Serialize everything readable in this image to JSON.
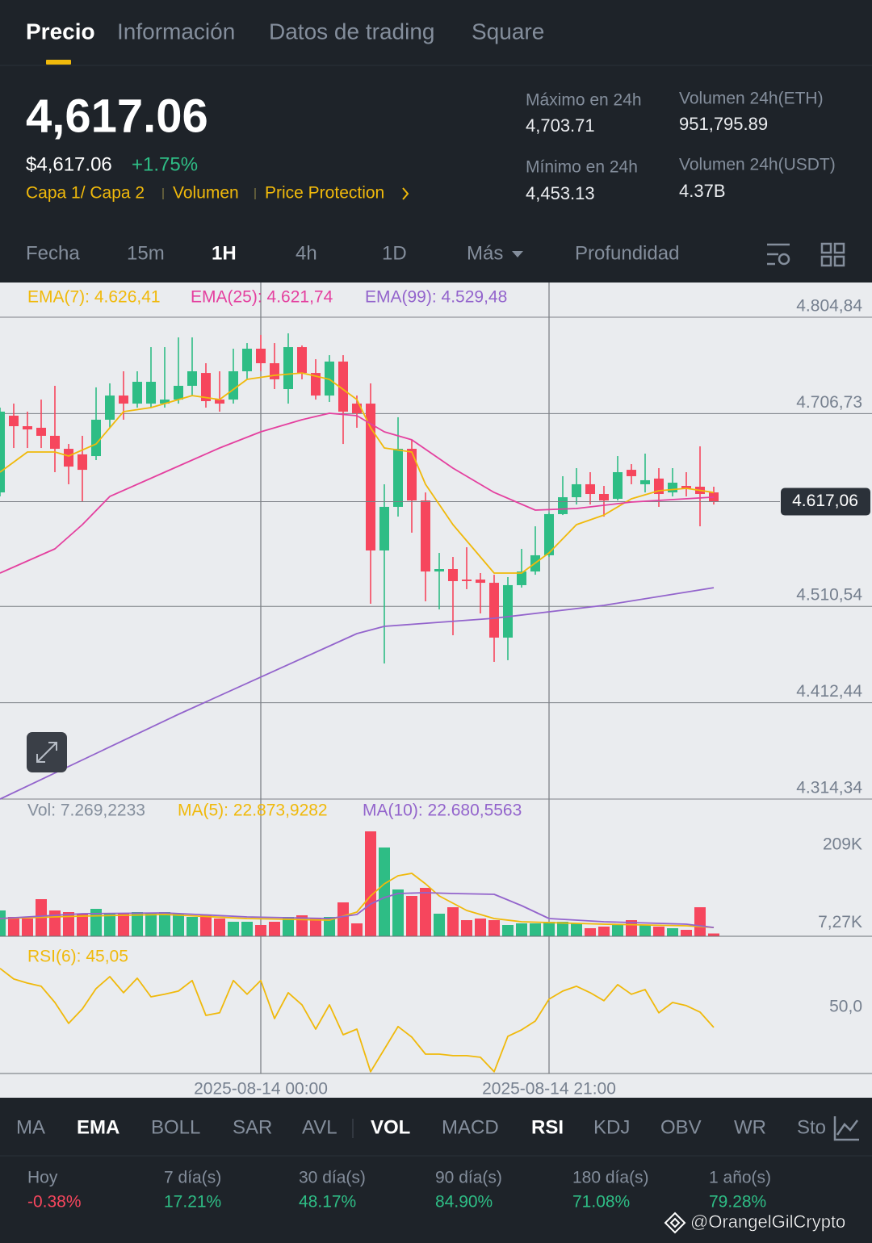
{
  "tabs": [
    "Precio",
    "Información",
    "Datos de trading",
    "Square"
  ],
  "price": "4,617.06",
  "price_usd": "$4,617.06",
  "change": "+1.75%",
  "links": [
    "Capa 1/ Capa 2",
    "Volumen",
    "Price Protection"
  ],
  "stats": [
    {
      "label": "Máximo en 24h",
      "value": "4,703.71"
    },
    {
      "label": "Volumen 24h(ETH)",
      "value": "951,795.89"
    },
    {
      "label": "Mínimo en 24h",
      "value": "4,453.13"
    },
    {
      "label": "Volumen 24h(USDT)",
      "value": "4.37B"
    }
  ],
  "intervals": [
    "Fecha",
    "15m",
    "1H",
    "4h",
    "1D",
    "Más",
    "Profundidad"
  ],
  "chart_data": [
    {
      "type": "candlestick",
      "up_color": "#2ebd85",
      "down_color": "#f6465d",
      "grid": true,
      "x": [
        0,
        1,
        2,
        3,
        4,
        5,
        6,
        7,
        8,
        9,
        10,
        11,
        12,
        13,
        14,
        15,
        16,
        17,
        18,
        19,
        20,
        21,
        22,
        23,
        24,
        25,
        26,
        27,
        28,
        29,
        30,
        31,
        32,
        33,
        34,
        35,
        36,
        37,
        38,
        39,
        40,
        41,
        42,
        43,
        44,
        45,
        46,
        47,
        48,
        49,
        50,
        51,
        52
      ],
      "open": [
        4626.5,
        4704.6,
        4693.9,
        4692.3,
        4684.1,
        4670.9,
        4665.2,
        4663.5,
        4700.5,
        4725.1,
        4716.9,
        4716.9,
        4716.9,
        4721.0,
        4735.0,
        4748.1,
        4721.0,
        4721.0,
        4749.8,
        4772.8,
        4758.0,
        4731.7,
        4774.4,
        4748.1,
        4725.1,
        4759.7,
        4716.9,
        4716.9,
        4567.4,
        4611.8,
        4670.9,
        4618.3,
        4546.0,
        4548.5,
        4537.8,
        4537.8,
        4534.5,
        4478.7,
        4532.1,
        4546.0,
        4562.5,
        4604.4,
        4621.6,
        4634.8,
        4624.9,
        4620.0,
        4649.5,
        4634.8,
        4640.6,
        4626.5,
        4633.1,
        4632.3,
        4626.5
      ],
      "high": [
        4712.8,
        4716.9,
        4708.7,
        4721.0,
        4735.0,
        4675.8,
        4684.1,
        4733.4,
        4737.5,
        4749.8,
        4749.8,
        4774.4,
        4774.4,
        4784.3,
        4784.3,
        4758.0,
        4749.8,
        4772.8,
        4778.5,
        4786.8,
        4778.5,
        4788.4,
        4776.1,
        4762.1,
        4766.2,
        4766.2,
        4725.1,
        4737.5,
        4634.8,
        4703.0,
        4680.0,
        4626.5,
        4564.9,
        4560.8,
        4570.7,
        4544.4,
        4542.7,
        4540.3,
        4569.0,
        4592.0,
        4606.0,
        4643.0,
        4651.2,
        4647.1,
        4633.1,
        4663.5,
        4655.3,
        4666.0,
        4651.2,
        4651.2,
        4647.1,
        4673.4,
        4632.3
      ],
      "low": [
        4622.4,
        4671.7,
        4671.7,
        4671.7,
        4647.1,
        4634.8,
        4616.7,
        4659.4,
        4692.3,
        4700.5,
        4712.8,
        4712.8,
        4712.8,
        4716.9,
        4725.1,
        4712.8,
        4708.7,
        4716.9,
        4741.6,
        4749.8,
        4731.7,
        4716.9,
        4741.6,
        4721.0,
        4718.6,
        4675.8,
        4692.3,
        4513.2,
        4452.4,
        4601.9,
        4585.5,
        4515.6,
        4507.4,
        4481.1,
        4528.0,
        4503.3,
        4454.0,
        4455.7,
        4529.6,
        4542.7,
        4560.8,
        4603.5,
        4614.2,
        4614.2,
        4601.9,
        4618.3,
        4634.8,
        4626.5,
        4611.8,
        4622.4,
        4622.4,
        4592.0,
        4614.2
      ],
      "close": [
        4708.7,
        4693.9,
        4690.6,
        4684.1,
        4670.9,
        4652.8,
        4649.5,
        4700.5,
        4725.1,
        4716.9,
        4739.1,
        4739.1,
        4721.0,
        4735.0,
        4749.8,
        4719.4,
        4716.9,
        4749.8,
        4772.8,
        4758.0,
        4741.6,
        4774.4,
        4748.1,
        4725.1,
        4759.7,
        4708.7,
        4707.1,
        4567.4,
        4611.8,
        4670.9,
        4618.3,
        4546.0,
        4548.5,
        4536.2,
        4536.2,
        4534.5,
        4478.7,
        4532.1,
        4546.0,
        4562.5,
        4604.4,
        4621.6,
        4634.8,
        4624.9,
        4618.3,
        4647.1,
        4643.0,
        4638.9,
        4624.9,
        4636.4,
        4630.7,
        4624.9,
        4617.06
      ],
      "series": [
        {
          "name": "EMA(7): 4.626,41",
          "color": "#f0b90b",
          "x": [
            0,
            2,
            4,
            5,
            7,
            9,
            11,
            14,
            16,
            18,
            20,
            22,
            24,
            26,
            27,
            28,
            30,
            31,
            33,
            35,
            36,
            38,
            40,
            42,
            44,
            46,
            48,
            50,
            52
          ],
          "values": [
            4647.1,
            4667.6,
            4667.6,
            4663.5,
            4675.8,
            4708.7,
            4712.8,
            4725.1,
            4721.0,
            4741.6,
            4745.7,
            4748.1,
            4741.6,
            4721.0,
            4692.3,
            4671.7,
            4667.6,
            4634.8,
            4593.7,
            4560.8,
            4544.4,
            4544.4,
            4564.9,
            4593.7,
            4603.5,
            4620.0,
            4628.2,
            4630.7,
            4626.41
          ]
        },
        {
          "name": "EMA(25): 4.621,74",
          "color": "#e4409f",
          "x": [
            0,
            4,
            6,
            8,
            12,
            16,
            19,
            22,
            24,
            26,
            28,
            30,
            33,
            36,
            39,
            42,
            46,
            52
          ],
          "values": [
            4544.4,
            4569.0,
            4593.7,
            4622.4,
            4647.1,
            4671.7,
            4688.2,
            4700.5,
            4707.1,
            4704.6,
            4688.2,
            4680.0,
            4651.2,
            4626.5,
            4608.5,
            4610.1,
            4616.7,
            4621.74
          ]
        },
        {
          "name": "EMA(99): 4.529,48",
          "color": "#9364cc",
          "x": [
            0,
            13,
            26,
            28,
            36,
            44,
            52
          ],
          "values": [
            4314.34,
            4400.6,
            4482.8,
            4490.2,
            4498.4,
            4511.5,
            4529.48
          ]
        }
      ],
      "xlim": [
        0,
        63.5
      ],
      "ylim": [
        4314.34,
        4840.17
      ],
      "yticks": [
        {
          "value": 4804.84,
          "label": "4.804,84"
        },
        {
          "value": 4706.73,
          "label": "4.706,73"
        },
        {
          "value": 4510.54,
          "label": "4.510,54"
        },
        {
          "value": 4412.44,
          "label": "4.412,44"
        },
        {
          "value": 4314.34,
          "label": "4.314,34"
        }
      ],
      "xticks": [
        {
          "value": 19,
          "label": "2025-08-14 00:00"
        },
        {
          "value": 40,
          "label": "2025-08-14 21:00"
        }
      ],
      "last_price": {
        "value": 4617.06,
        "label": "4.617,06"
      }
    },
    {
      "type": "bar",
      "name": "Vol: 7.269,2233",
      "grid": false,
      "values": [
        66880,
        50160,
        45980,
        96140,
        66880,
        62700,
        58520,
        71060,
        58520,
        58520,
        62700,
        58520,
        62700,
        58520,
        50160,
        54340,
        45980,
        37620,
        37620,
        29260,
        37620,
        50160,
        54340,
        45980,
        50160,
        87780,
        33440,
        271700,
        229900,
        121220,
        104500,
        125400,
        58520,
        75240,
        41800,
        45980,
        41800,
        29260,
        33440,
        33440,
        37620,
        37620,
        33440,
        20900,
        25080,
        29260,
        41800,
        29260,
        25080,
        20900,
        16720,
        75240,
        7269.2233
      ],
      "series": [
        {
          "name": "MA(5): 22.873,9282",
          "color": "#f0b90b",
          "x": [
            0,
            6,
            12,
            18,
            24,
            26,
            27,
            28,
            29,
            30,
            31,
            32,
            34,
            36,
            38,
            44,
            50,
            52
          ],
          "values": [
            45980,
            52250,
            56430,
            45980,
            41800,
            62700,
            104500,
            135850,
            156750,
            163020,
            135850,
            104500,
            66880,
            45980,
            37620,
            31350,
            27170,
            22873.9282
          ]
        },
        {
          "name": "MA(10): 22.680,5563",
          "color": "#9364cc",
          "x": [
            0,
            6,
            12,
            18,
            24,
            26,
            27,
            28,
            29,
            31,
            33,
            36,
            38,
            40,
            44,
            50,
            52
          ],
          "values": [
            45980,
            58520,
            60610,
            50160,
            45980,
            56430,
            83600,
            100320,
            110770,
            112860,
            110770,
            108680,
            79420,
            45980,
            37620,
            31350,
            22680.5563
          ]
        }
      ],
      "ylim": [
        0,
        334400
      ],
      "yticks": [
        {
          "value": 209000,
          "label": "209K"
        },
        {
          "value": 7269.2233,
          "label": "7,27K"
        }
      ]
    },
    {
      "type": "line",
      "grid": false,
      "series": [
        {
          "name": "RSI(6): 45,05",
          "color": "#f0b90b",
          "values": [
            75.2,
            69.8,
            67.7,
            66.1,
            57.8,
            47.1,
            54.5,
            64.9,
            71.0,
            62.8,
            70.2,
            60.7,
            62.0,
            63.6,
            69.0,
            51.2,
            52.5,
            69.0,
            62.0,
            69.0,
            49.6,
            62.8,
            56.6,
            44.2,
            56.6,
            41.3,
            44.2,
            22.4,
            33.9,
            45.5,
            40.1,
            31.4,
            31.4,
            30.6,
            30.6,
            29.8,
            22.4,
            40.5,
            43.8,
            48.3,
            59.5,
            63.6,
            66.1,
            62.8,
            58.7,
            66.9,
            62.0,
            64.4,
            52.5,
            57.8,
            56.2,
            52.9,
            45.05
          ]
        }
      ],
      "ylim": [
        21.5,
        87.5
      ],
      "yticks": [
        {
          "value": 50,
          "label": "50,0"
        }
      ]
    }
  ],
  "indicators": [
    "MA",
    "EMA",
    "BOLL",
    "SAR",
    "AVL",
    "VOL",
    "MACD",
    "RSI",
    "KDJ",
    "OBV",
    "WR",
    "Sto"
  ],
  "performance": [
    {
      "period": "Hoy",
      "value": "-0.38%"
    },
    {
      "period": "7 día(s)",
      "value": "17.21%"
    },
    {
      "period": "30 día(s)",
      "value": "48.17%"
    },
    {
      "period": "90 día(s)",
      "value": "84.90%"
    },
    {
      "period": "180 día(s)",
      "value": "71.08%"
    },
    {
      "period": "1 año(s)",
      "value": "79.28%"
    }
  ],
  "watermark": "@OrangelGilCrypto"
}
